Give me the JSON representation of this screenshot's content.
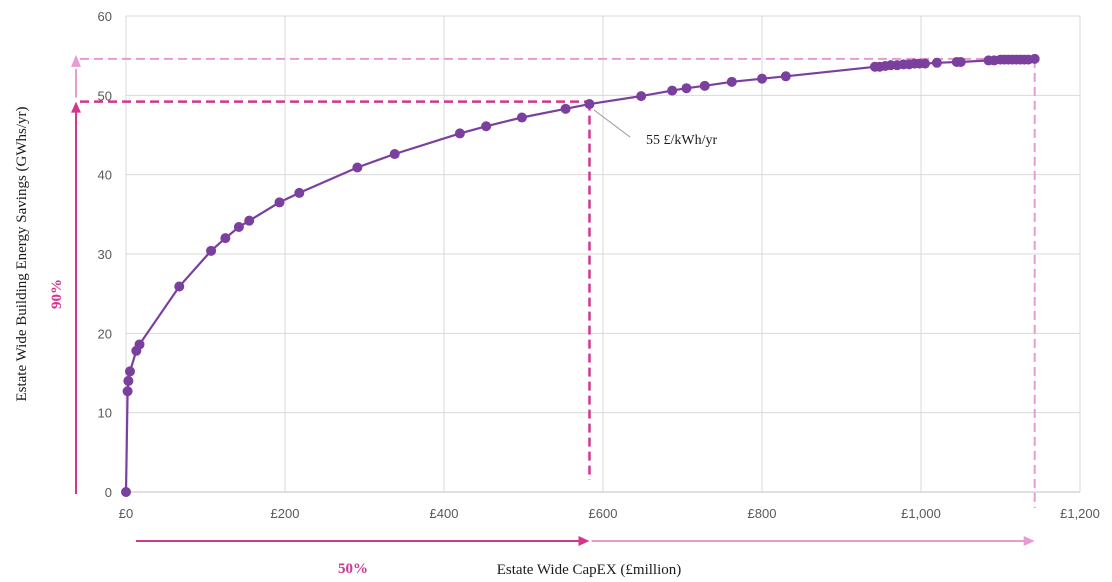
{
  "colors": {
    "series": "#7b3f9e",
    "magenta": "#d0378f",
    "light_pink": "#e79bd0",
    "grid": "#d9d9d9"
  },
  "chart_data": {
    "type": "line",
    "title": "",
    "xlabel": "Estate Wide CapEX (£million)",
    "ylabel": "Estate Wide Building Energy Savings (GWhs/yr)",
    "xlim": [
      0,
      1200
    ],
    "ylim": [
      0,
      60
    ],
    "grid": true,
    "x_ticks": [
      {
        "value": 0,
        "label": "£0"
      },
      {
        "value": 200,
        "label": "£200"
      },
      {
        "value": 400,
        "label": "£400"
      },
      {
        "value": 600,
        "label": "£600"
      },
      {
        "value": 800,
        "label": "£800"
      },
      {
        "value": 1000,
        "label": "£1,000"
      },
      {
        "value": 1200,
        "label": "£1,200"
      }
    ],
    "y_ticks": [
      {
        "value": 0,
        "label": "0"
      },
      {
        "value": 10,
        "label": "10"
      },
      {
        "value": 20,
        "label": "20"
      },
      {
        "value": 30,
        "label": "30"
      },
      {
        "value": 40,
        "label": "40"
      },
      {
        "value": 50,
        "label": "50"
      },
      {
        "value": 60,
        "label": "60"
      }
    ],
    "series": [
      {
        "x": [
          0,
          2,
          3,
          5,
          13,
          17,
          67,
          107,
          125,
          142,
          155,
          193,
          218,
          291,
          338,
          420,
          453,
          498,
          553,
          583,
          648,
          687,
          705,
          728,
          762,
          800,
          830,
          942,
          948,
          955,
          962,
          970,
          978,
          985,
          992,
          998,
          1005,
          1020,
          1045,
          1050,
          1085,
          1092,
          1100,
          1105,
          1110,
          1115,
          1120,
          1125,
          1130,
          1135,
          1143
        ],
        "y": [
          0,
          12.7,
          14,
          15.2,
          17.8,
          18.6,
          25.9,
          30.4,
          32,
          33.4,
          34.2,
          36.5,
          37.7,
          40.9,
          42.6,
          45.2,
          46.1,
          47.2,
          48.3,
          48.9,
          49.9,
          50.6,
          50.9,
          51.2,
          51.7,
          52.1,
          52.4,
          53.6,
          53.6,
          53.7,
          53.8,
          53.8,
          53.9,
          53.9,
          54,
          54,
          54,
          54.1,
          54.2,
          54.2,
          54.4,
          54.4,
          54.5,
          54.5,
          54.5,
          54.5,
          54.5,
          54.5,
          54.5,
          54.5,
          54.6
        ]
      }
    ],
    "reference_lines": {
      "x_90pct": 583,
      "y_90pct": 49.2,
      "x_full": 1143,
      "y_full": 54.6
    },
    "annotations": {
      "point_label": "55 £/kWh/yr",
      "point_x": 583,
      "point_y": 48.9,
      "y_arrow_label": "90%",
      "x_arrow_label": "50%"
    }
  }
}
